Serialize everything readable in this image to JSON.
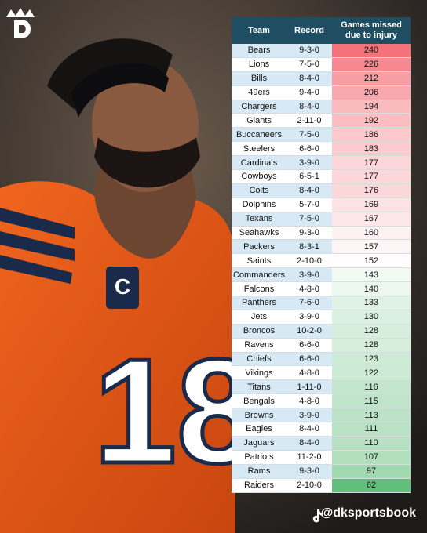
{
  "photo": {
    "jersey_number": "18",
    "captain_patch": "C"
  },
  "table": {
    "header": [
      "Team",
      "Record",
      "Games missed due to injury"
    ],
    "rows": [
      [
        "Bears",
        "9-3-0",
        240
      ],
      [
        "Lions",
        "7-5-0",
        226
      ],
      [
        "Bills",
        "8-4-0",
        212
      ],
      [
        "49ers",
        "9-4-0",
        206
      ],
      [
        "Chargers",
        "8-4-0",
        194
      ],
      [
        "Giants",
        "2-11-0",
        192
      ],
      [
        "Buccaneers",
        "7-5-0",
        186
      ],
      [
        "Steelers",
        "6-6-0",
        183
      ],
      [
        "Cardinals",
        "3-9-0",
        177
      ],
      [
        "Cowboys",
        "6-5-1",
        177
      ],
      [
        "Colts",
        "8-4-0",
        176
      ],
      [
        "Dolphins",
        "5-7-0",
        169
      ],
      [
        "Texans",
        "7-5-0",
        167
      ],
      [
        "Seahawks",
        "9-3-0",
        160
      ],
      [
        "Packers",
        "8-3-1",
        157
      ],
      [
        "Saints",
        "2-10-0",
        152
      ],
      [
        "Commanders",
        "3-9-0",
        143
      ],
      [
        "Falcons",
        "4-8-0",
        140
      ],
      [
        "Panthers",
        "7-6-0",
        133
      ],
      [
        "Jets",
        "3-9-0",
        130
      ],
      [
        "Broncos",
        "10-2-0",
        128
      ],
      [
        "Ravens",
        "6-6-0",
        128
      ],
      [
        "Chiefs",
        "6-6-0",
        123
      ],
      [
        "Vikings",
        "4-8-0",
        122
      ],
      [
        "Titans",
        "1-11-0",
        116
      ],
      [
        "Bengals",
        "4-8-0",
        115
      ],
      [
        "Browns",
        "3-9-0",
        113
      ],
      [
        "Eagles",
        "8-4-0",
        111
      ],
      [
        "Jaguars",
        "8-4-0",
        110
      ],
      [
        "Patriots",
        "11-2-0",
        107
      ],
      [
        "Rams",
        "9-3-0",
        97
      ],
      [
        "Raiders",
        "2-10-0",
        62
      ]
    ]
  },
  "footer": {
    "handle": "@dksportsbook"
  }
}
